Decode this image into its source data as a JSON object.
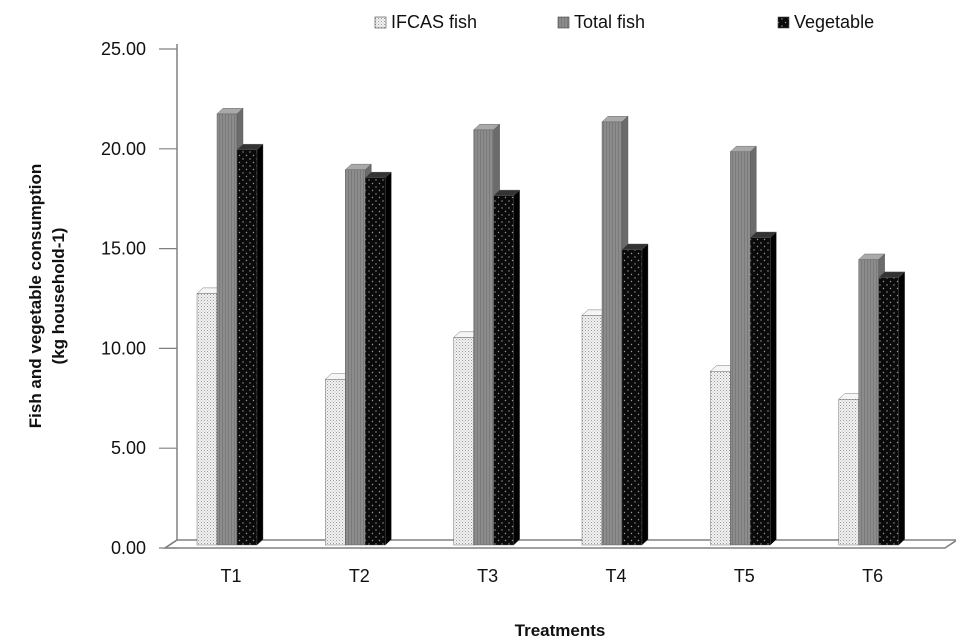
{
  "chart_data": {
    "type": "bar",
    "title": "",
    "xlabel": "Treatments",
    "ylabel": "Fish and vegetable consumption",
    "ylabel_line2": "(kg household-1)",
    "categories": [
      "T1",
      "T2",
      "T3",
      "T4",
      "T5",
      "T6"
    ],
    "series": [
      {
        "name": "IFCAS fish",
        "values": [
          12.6,
          8.3,
          10.4,
          11.5,
          8.7,
          7.3
        ]
      },
      {
        "name": "Total fish",
        "values": [
          21.6,
          18.8,
          20.8,
          21.2,
          19.7,
          14.3
        ]
      },
      {
        "name": "Vegetable",
        "values": [
          19.8,
          18.4,
          17.5,
          14.8,
          15.4,
          13.4
        ]
      }
    ],
    "ylim": [
      0,
      25
    ],
    "yticks": [
      "0.00",
      "5.00",
      "10.00",
      "15.00",
      "20.00",
      "25.00"
    ],
    "legend_position": "top",
    "grid": false,
    "three_d": true
  },
  "colors": {
    "ifcas_fish": "#e0e0e0",
    "total_fish": "#8a8a8a",
    "vegetable": "#0d0d0d",
    "axis": "#808080"
  }
}
